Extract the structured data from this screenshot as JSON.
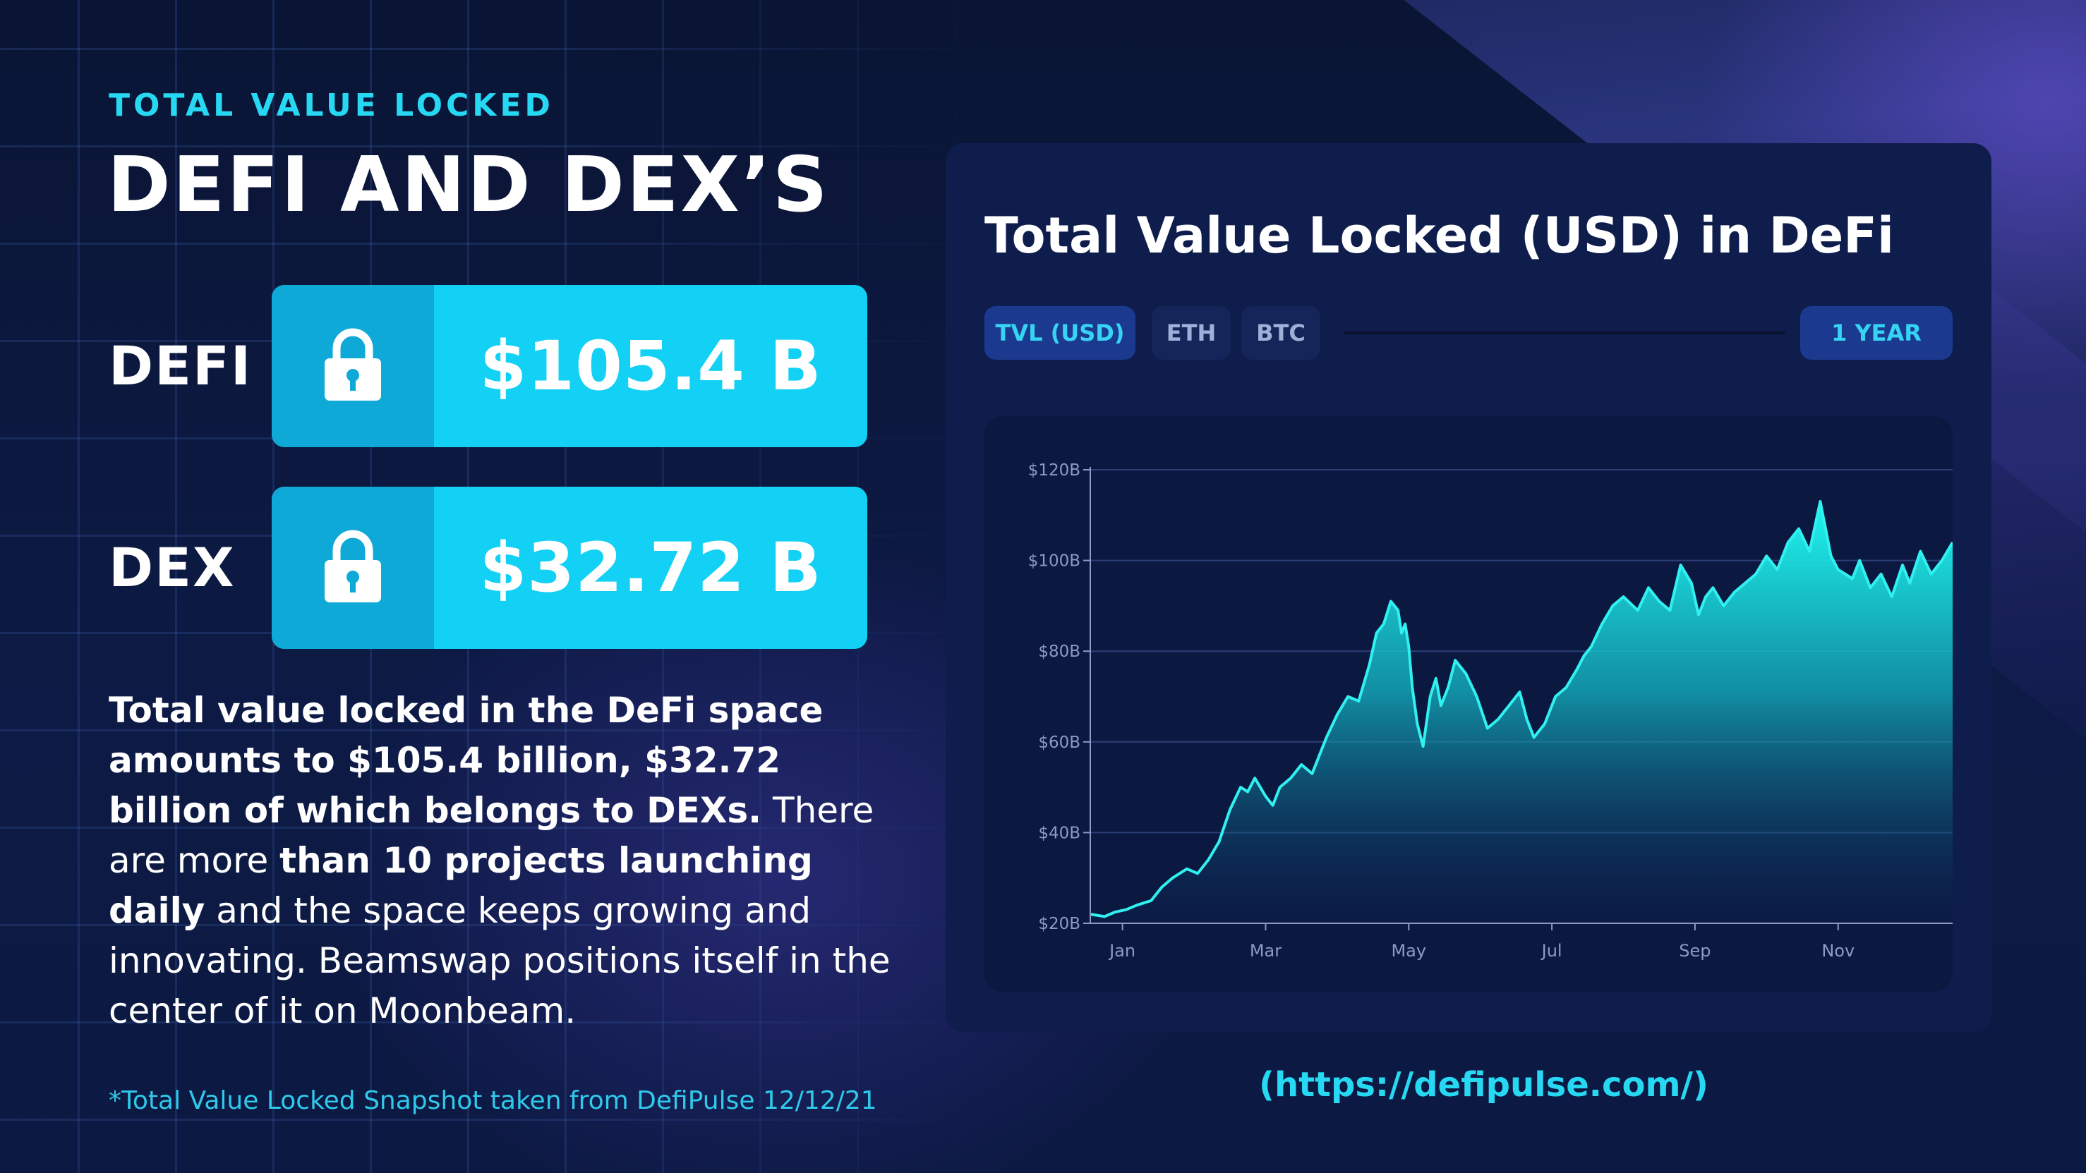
{
  "header": {
    "kicker": "TOTAL VALUE LOCKED",
    "headline": "DEFI AND DEX’S"
  },
  "stats": [
    {
      "label": "DEFI",
      "value": "$105.4 B",
      "icon": "lock-icon"
    },
    {
      "label": "DEX",
      "value": "$32.72 B",
      "icon": "lock-icon"
    }
  ],
  "body": {
    "p1_bold": "Total value locked in the DeFi space amounts to $105.4 billion, $32.72 billion of which belongs to DEXs.",
    "p1_rest": " There are more ",
    "p2_bold": "than 10 projects launching daily",
    "p2_rest": " and the space keeps growing and innovating. Beamswap positions itself in the center of it on Moonbeam."
  },
  "footnote": "*Total Value Locked Snapshot taken from DefiPulse 12/12/21",
  "panel": {
    "title": "Total Value Locked (USD) in DeFi",
    "tabs": [
      "TVL (USD)",
      "ETH",
      "BTC"
    ],
    "active_tab": "TVL (USD)",
    "range": "1 YEAR"
  },
  "source_link": "(https://defipulse.com/)",
  "colors": {
    "accent": "#27d8f2",
    "card": "#13d0f5",
    "card_icon_bg": "#0fa9d8",
    "panel": "#0f1d4d",
    "line": "#30f0f0"
  },
  "chart_data": {
    "type": "area",
    "title": "Total Value Locked (USD) in DeFi",
    "xlabel": "",
    "ylabel": "",
    "ylim": [
      20,
      120
    ],
    "y_unit": "B USD",
    "y_ticks": [
      "$20B",
      "$40B",
      "$60B",
      "$80B",
      "$100B",
      "$120B"
    ],
    "y_tick_values": [
      20,
      40,
      60,
      80,
      100,
      120
    ],
    "x_ticks": [
      "Jan",
      "Mar",
      "May",
      "Jul",
      "Sep",
      "Nov"
    ],
    "x_tick_values": [
      1,
      3,
      5,
      7,
      9,
      11
    ],
    "xlim": [
      0.55,
      12.6
    ],
    "grid": true,
    "series": [
      {
        "x": [
          0.55,
          0.75,
          0.9,
          1.05,
          1.2,
          1.4,
          1.55,
          1.7,
          1.9,
          2.05,
          2.2,
          2.35,
          2.5,
          2.65,
          2.75,
          2.85,
          3.0,
          3.1,
          3.2,
          3.35,
          3.5,
          3.65,
          3.75,
          3.85,
          4.0,
          4.15,
          4.3,
          4.45,
          4.55,
          4.65,
          4.75,
          4.85,
          4.9,
          4.95,
          5.0,
          5.05,
          5.12,
          5.2,
          5.3,
          5.38,
          5.45,
          5.55,
          5.65,
          5.8,
          5.95,
          6.1,
          6.25,
          6.4,
          6.55,
          6.65,
          6.75,
          6.9,
          7.05,
          7.2,
          7.35,
          7.45,
          7.55,
          7.7,
          7.85,
          8.0,
          8.2,
          8.35,
          8.5,
          8.65,
          8.8,
          8.95,
          9.05,
          9.15,
          9.25,
          9.4,
          9.55,
          9.7,
          9.85,
          10.0,
          10.15,
          10.3,
          10.45,
          10.6,
          10.75,
          10.9,
          11.0,
          11.1,
          11.2,
          11.3,
          11.45,
          11.6,
          11.75,
          11.9,
          12.0,
          12.15,
          12.3,
          12.45,
          12.6
        ],
        "y": [
          22,
          21.5,
          22.5,
          23,
          24,
          25,
          28,
          30,
          32,
          31,
          34,
          38,
          45,
          50,
          49,
          52,
          48,
          46,
          50,
          52,
          55,
          53,
          57,
          61,
          66,
          70,
          69,
          77,
          84,
          86,
          91,
          89,
          84,
          86,
          81,
          72,
          64,
          59,
          70,
          74,
          68,
          72,
          78,
          75,
          70,
          63,
          65,
          68,
          71,
          65,
          61,
          64,
          70,
          72,
          76,
          79,
          81,
          86,
          90,
          92,
          89,
          94,
          91,
          89,
          99,
          95,
          88,
          92,
          94,
          90,
          93,
          95,
          97,
          101,
          98,
          104,
          107,
          102,
          113,
          101,
          98,
          97,
          96,
          100,
          94,
          97,
          92,
          99,
          95,
          102,
          97,
          100,
          104
        ]
      }
    ]
  }
}
